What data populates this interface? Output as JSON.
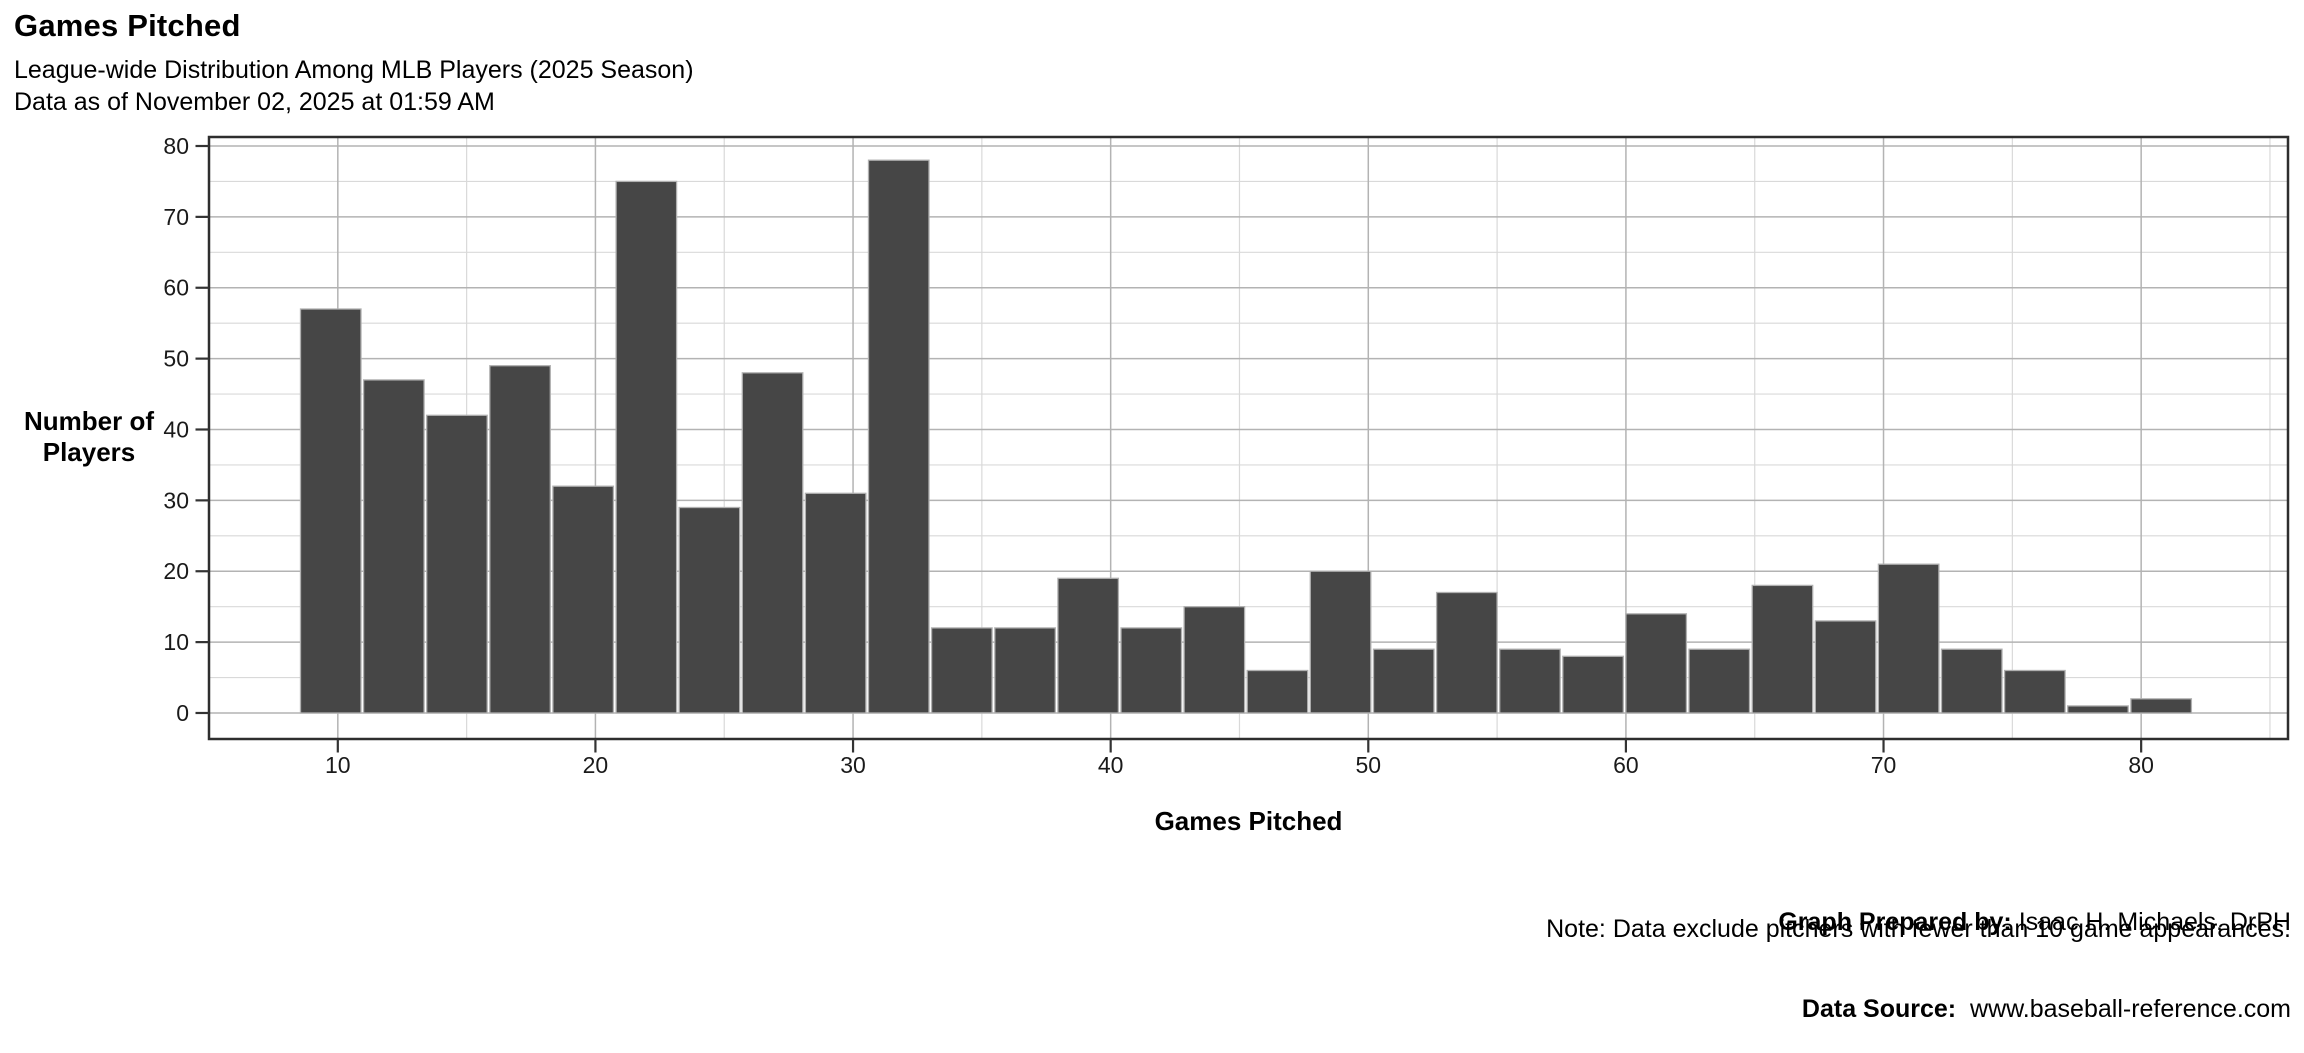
{
  "header": {
    "title": "Games Pitched",
    "subtitle": "League-wide Distribution Among MLB Players (2025 Season)",
    "date_line": "Data as of November 02, 2025 at 01:59 AM"
  },
  "y_axis": {
    "label_line1": "Number of",
    "label_line2": "Players"
  },
  "x_axis": {
    "label": "Games Pitched"
  },
  "footer": {
    "prepared_by_label": "Graph Prepared by:",
    "prepared_by_value": " Isaac H. Michaels, DrPH",
    "source_label": "Data Source:",
    "source_value": "  www.baseball-reference.com",
    "note": "Note: Data exclude pitchers with fewer than 10 game appearances."
  },
  "colors": {
    "bar_fill": "#464646",
    "bar_border": "#b0b0b0",
    "grid_major": "#b3b3b3",
    "grid_minor": "#d9d9d9",
    "panel_border": "#2e2e2e",
    "tick_mark": "#333333",
    "tick_label": "#1a1a1a"
  },
  "chart_data": {
    "type": "bar",
    "subtype": "histogram",
    "title": "Games Pitched",
    "xlabel": "Games Pitched",
    "ylabel": "Number of Players",
    "n_bins": 30,
    "bin_start": 8.5,
    "bin_width": 2.45,
    "values": [
      57,
      47,
      42,
      49,
      32,
      75,
      29,
      48,
      31,
      78,
      12,
      12,
      19,
      12,
      15,
      6,
      20,
      9,
      17,
      9,
      8,
      14,
      9,
      18,
      13,
      21,
      9,
      6,
      1,
      2
    ],
    "x_ticks": [
      10,
      20,
      30,
      40,
      50,
      60,
      70,
      80
    ],
    "x_minor_ticks": [
      15,
      25,
      35,
      45,
      55,
      65,
      75,
      85
    ],
    "y_ticks": [
      0,
      10,
      20,
      30,
      40,
      50,
      60,
      70,
      80
    ],
    "y_minor_ticks": [
      5,
      15,
      25,
      35,
      45,
      55,
      65,
      75
    ],
    "xlim": [
      5.0,
      85.7
    ],
    "ylim": [
      -3.67,
      81.27
    ],
    "grid": "major-and-minor",
    "legend": "none"
  }
}
